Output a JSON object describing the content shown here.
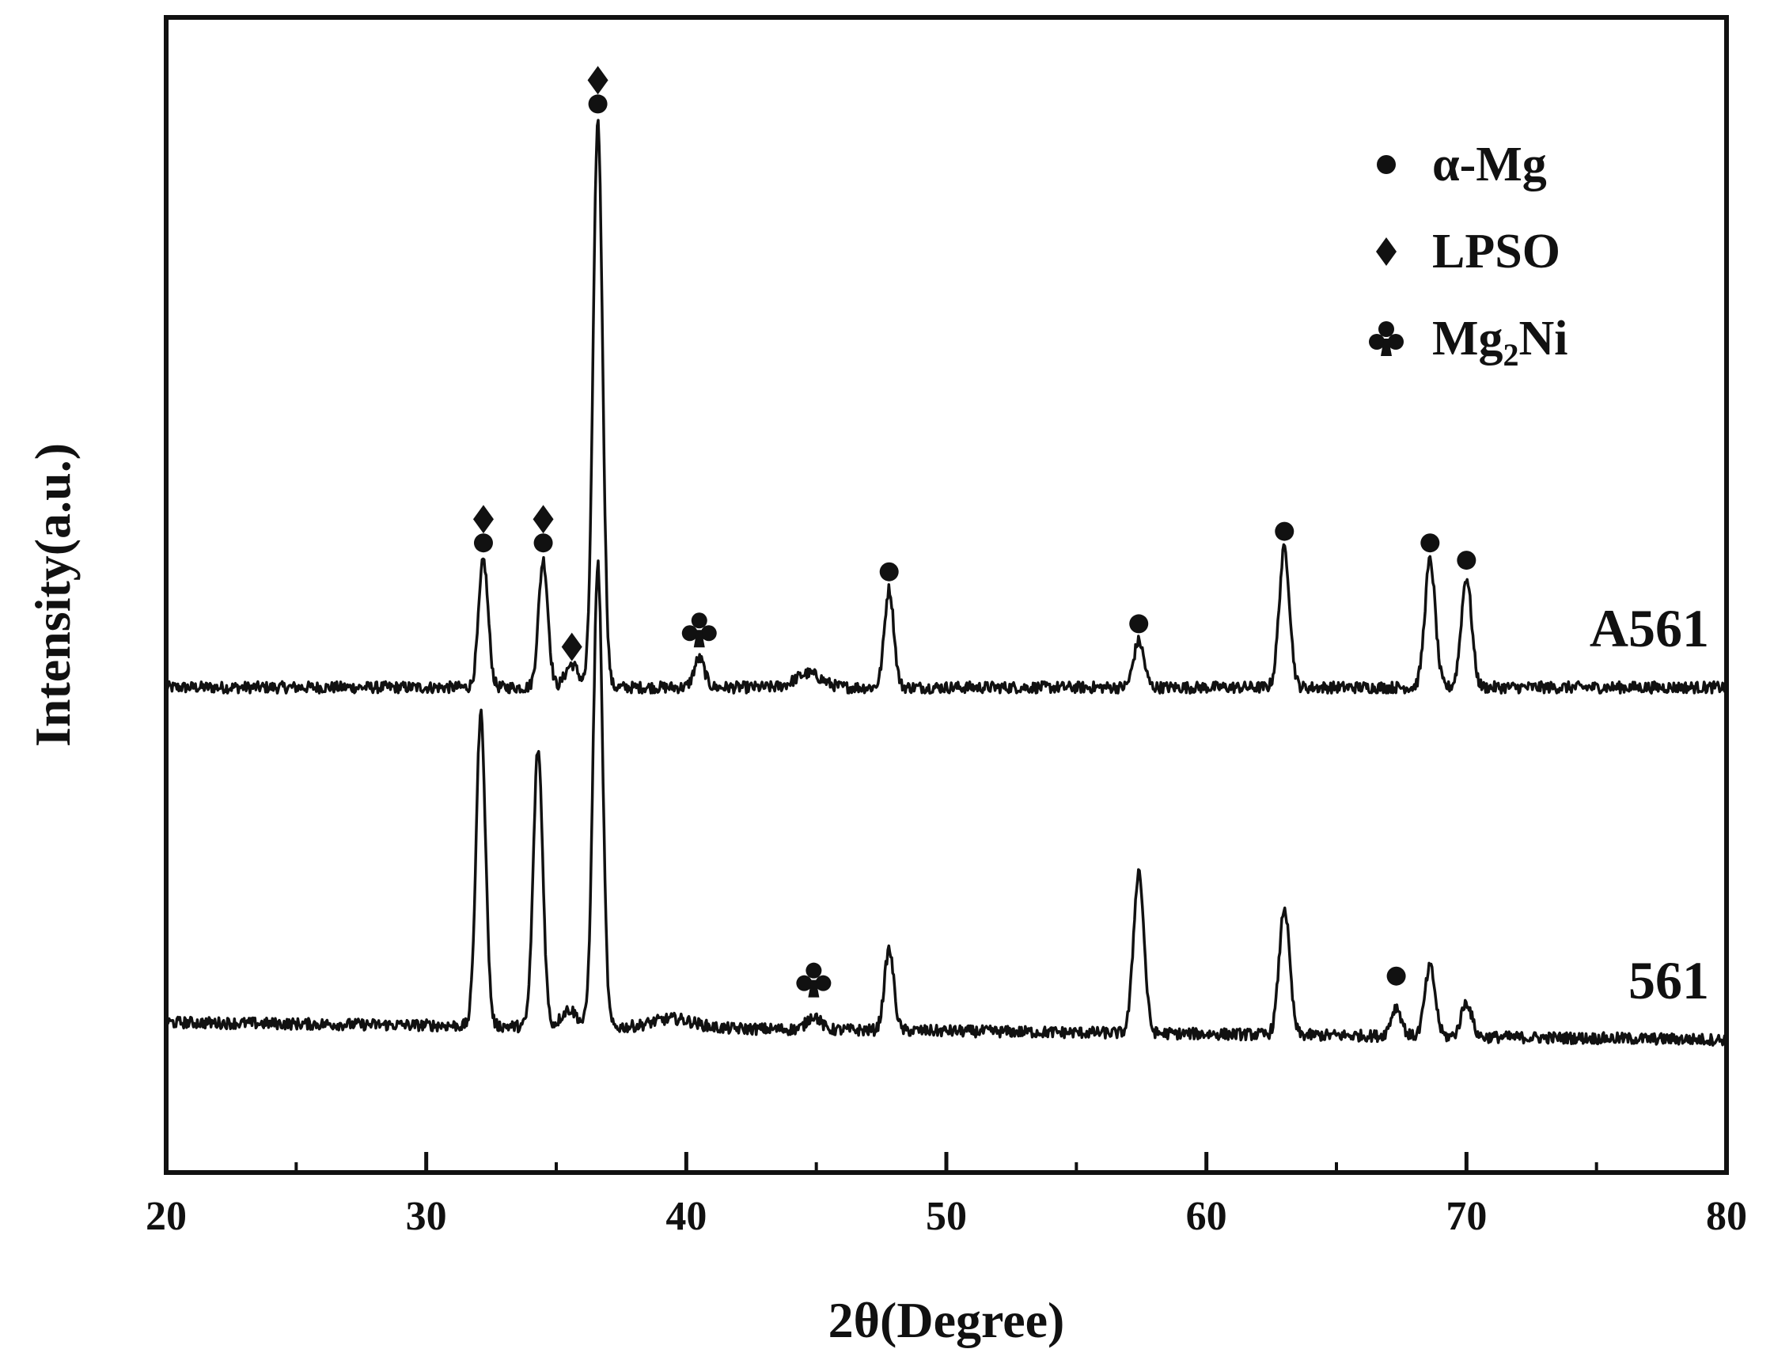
{
  "chart_data": {
    "type": "line",
    "title": "",
    "xlabel": "2θ(Degree)",
    "ylabel": "Intensity(a.u.)",
    "xlim": [
      20,
      80
    ],
    "x_ticks": [
      20,
      30,
      40,
      50,
      60,
      70,
      80
    ],
    "x_tick_labels": [
      "20",
      "30",
      "40",
      "50",
      "60",
      "70",
      "80"
    ],
    "ylim": [
      0,
      100
    ],
    "grid": false,
    "legend_position": "top-right",
    "legend": [
      {
        "marker": "circle",
        "label": "α-Mg"
      },
      {
        "marker": "diamond",
        "label": "LPSO"
      },
      {
        "marker": "club",
        "label": "Mg2Ni",
        "label_main": "Mg",
        "label_sub": "2",
        "label_tail": "Ni"
      }
    ],
    "series": [
      {
        "name": "A561",
        "baseline": 42,
        "baseline_end": 42,
        "peaks": [
          {
            "x": 32.2,
            "height": 11,
            "width": 0.18
          },
          {
            "x": 34.5,
            "height": 11,
            "width": 0.18
          },
          {
            "x": 35.6,
            "height": 2,
            "width": 0.25
          },
          {
            "x": 36.6,
            "height": 49,
            "width": 0.18
          },
          {
            "x": 40.5,
            "height": 2.5,
            "width": 0.2
          },
          {
            "x": 44.7,
            "height": 1.2,
            "width": 0.5
          },
          {
            "x": 47.8,
            "height": 8.5,
            "width": 0.18
          },
          {
            "x": 57.4,
            "height": 4,
            "width": 0.2
          },
          {
            "x": 63.0,
            "height": 12,
            "width": 0.2
          },
          {
            "x": 68.6,
            "height": 11,
            "width": 0.2
          },
          {
            "x": 70.0,
            "height": 9.5,
            "width": 0.2
          }
        ],
        "markers": [
          {
            "x": 32.2,
            "symbols": [
              "circle",
              "diamond"
            ]
          },
          {
            "x": 34.5,
            "symbols": [
              "circle",
              "diamond"
            ]
          },
          {
            "x": 35.6,
            "symbols": [
              "diamond"
            ]
          },
          {
            "x": 36.6,
            "symbols": [
              "circle",
              "diamond"
            ]
          },
          {
            "x": 40.5,
            "symbols": [
              "club"
            ]
          },
          {
            "x": 47.8,
            "symbols": [
              "circle"
            ]
          },
          {
            "x": 57.4,
            "symbols": [
              "circle"
            ]
          },
          {
            "x": 63.0,
            "symbols": [
              "circle"
            ]
          },
          {
            "x": 68.6,
            "symbols": [
              "circle"
            ]
          },
          {
            "x": 70.0,
            "symbols": [
              "circle"
            ]
          }
        ]
      },
      {
        "name": "561",
        "baseline": 13,
        "baseline_end": 11.5,
        "peaks": [
          {
            "x": 32.1,
            "height": 27,
            "width": 0.18
          },
          {
            "x": 34.3,
            "height": 24,
            "width": 0.18
          },
          {
            "x": 35.5,
            "height": 1.5,
            "width": 0.3
          },
          {
            "x": 36.6,
            "height": 40,
            "width": 0.18
          },
          {
            "x": 39.5,
            "height": 0.8,
            "width": 0.8
          },
          {
            "x": 44.9,
            "height": 1.2,
            "width": 0.25
          },
          {
            "x": 47.8,
            "height": 7,
            "width": 0.18
          },
          {
            "x": 57.4,
            "height": 14,
            "width": 0.2
          },
          {
            "x": 63.0,
            "height": 11,
            "width": 0.2
          },
          {
            "x": 67.3,
            "height": 2.5,
            "width": 0.2
          },
          {
            "x": 68.6,
            "height": 6,
            "width": 0.2
          },
          {
            "x": 70.0,
            "height": 3,
            "width": 0.2
          }
        ],
        "markers": [
          {
            "x": 44.9,
            "symbols": [
              "club"
            ]
          },
          {
            "x": 67.3,
            "symbols": [
              "circle"
            ]
          }
        ]
      }
    ]
  }
}
